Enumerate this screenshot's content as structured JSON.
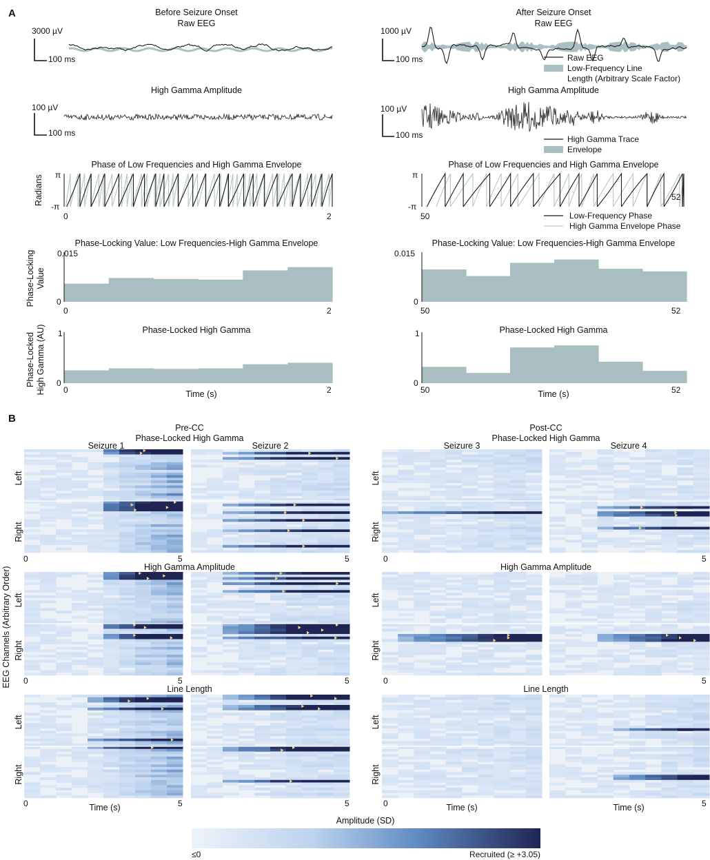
{
  "panel_labels": [
    "A",
    "B"
  ],
  "colors": {
    "trace": "#1b1b1b",
    "gray_blue": "#a9bfc2",
    "bar_fill": "#a8bec0",
    "light_trace": "#b5c6c8",
    "heat_low": "#e9eff7",
    "heat_mid": "#5a86c0",
    "heat_high": "#232b5a",
    "marker": "#f2d38a"
  },
  "panel_a": {
    "before": {
      "title": "Before Seizure Onset",
      "raw_title": "Raw EEG",
      "raw_scale_y": "3000 µV",
      "raw_scale_x": "100 ms",
      "hg_title": "High Gamma Amplitude",
      "hg_scale_y": "100 µV",
      "hg_scale_x": "100 ms",
      "phase_title": "Phase of Low Frequencies and High Gamma Envelope",
      "phase_ylabel": "Radians",
      "phase_ytop": "π",
      "phase_ybot": "-π",
      "phase_x0": "0",
      "phase_x1": "2",
      "plv_title": "Phase-Locking Value: Low Frequencies-High Gamma Envelope",
      "plv_ylabel_1": "Phase-Locking",
      "plv_ylabel_2": "Value",
      "plv_ytop": "0.015",
      "plv_ybot": "0",
      "plv_x0": "0",
      "plv_x1": "2",
      "plhg_title": "Phase-Locked High Gamma",
      "plhg_ylabel_1": "Phase-Locked",
      "plhg_ylabel_2": "High Gamma (AU)",
      "plhg_ytop": "1",
      "plhg_ybot": "0",
      "plhg_x0": "0",
      "plhg_x1": "2",
      "xlabel": "Time (s)"
    },
    "after": {
      "title": "After Seizure Onset",
      "raw_title": "Raw EEG",
      "raw_scale_y": "1000 µV",
      "raw_scale_x": "100 ms",
      "raw_legend": [
        "Raw EEG",
        "Low-Frequency Line",
        "Length (Arbitrary Scale Factor)"
      ],
      "hg_title": "High Gamma Amplitude",
      "hg_scale_y": "100 µV",
      "hg_scale_x": "100 ms",
      "hg_legend": [
        "High Gamma Trace",
        "Envelope"
      ],
      "phase_title": "Phase of Low Frequencies and High Gamma Envelope",
      "phase_ytop": "π",
      "phase_ybot": "-π",
      "phase_x0": "50",
      "phase_x1": "52",
      "phase_legend": [
        "Low-Frequency Phase",
        "High Gamma Envelope Phase"
      ],
      "plv_title": "Phase-Locking Value: Low Frequencies-High Gamma Envelope",
      "plv_ytop": "0.015",
      "plv_ybot": "0",
      "plv_x0": "50",
      "plv_x1": "52",
      "plhg_title": "Phase-Locked High Gamma",
      "plhg_ytop": "1",
      "plhg_ybot": "0",
      "plhg_x0": "50",
      "plhg_x1": "52",
      "xlabel": "Time (s)"
    }
  },
  "panel_b": {
    "pre_title_1": "Pre-CC",
    "pre_title_2": "Phase-Locked High Gamma",
    "post_title_1": "Post-CC",
    "post_title_2": "Phase-Locked High Gamma",
    "seizures": [
      "Seizure 1",
      "Seizure 2",
      "Seizure 3",
      "Seizure 4"
    ],
    "row_titles": [
      "High Gamma Amplitude",
      "Line Length"
    ],
    "ylabel": "EEG Channels (Arbitrary Order)",
    "left": "Left",
    "right": "Right",
    "x0": "0",
    "x1": "5",
    "xlabel": "Time (s)",
    "colorbar_title": "Amplitude (SD)",
    "colorbar_low": "≤0",
    "colorbar_high": "Recruited (≥ +3.05)"
  },
  "chart_data": [
    {
      "type": "bar",
      "title": "Phase-Locking Value: Low Frequencies-High Gamma Envelope (Before Seizure Onset)",
      "xlabel": "",
      "ylabel": "Phase-Locking Value",
      "xlim": [
        0,
        2
      ],
      "ylim": [
        0,
        0.015
      ],
      "values": [
        0.0055,
        0.0072,
        0.0069,
        0.0067,
        0.0095,
        0.0105
      ]
    },
    {
      "type": "bar",
      "title": "Phase-Locking Value: Low Frequencies-High Gamma Envelope (After Seizure Onset)",
      "xlabel": "",
      "ylabel": "Phase-Locking Value",
      "xlim": [
        50,
        52
      ],
      "ylim": [
        0,
        0.015
      ],
      "values": [
        0.0098,
        0.0078,
        0.0118,
        0.0128,
        0.01,
        0.0092
      ]
    },
    {
      "type": "bar",
      "title": "Phase-Locked High Gamma (Before Seizure Onset)",
      "xlabel": "Time (s)",
      "ylabel": "Phase-Locked High Gamma (AU)",
      "xlim": [
        0,
        2
      ],
      "ylim": [
        0,
        1
      ],
      "values": [
        0.25,
        0.29,
        0.28,
        0.29,
        0.37,
        0.4
      ]
    },
    {
      "type": "bar",
      "title": "Phase-Locked High Gamma (After Seizure Onset)",
      "xlabel": "Time (s)",
      "ylabel": "Phase-Locked High Gamma (AU)",
      "xlim": [
        50,
        52
      ],
      "ylim": [
        0,
        1
      ],
      "values": [
        0.32,
        0.2,
        0.7,
        0.74,
        0.42,
        0.24
      ]
    },
    {
      "type": "heatmap",
      "title": "Phase-Locked High Gamma / High Gamma Amplitude / Line Length per seizure (Pre-CC: Seizure 1-2, Post-CC: Seizure 3-4)",
      "xlabel": "Time (s)",
      "ylabel": "EEG Channels (Arbitrary Order)",
      "xlim": [
        0,
        5
      ],
      "colorbar": {
        "label": "Amplitude (SD)",
        "min_label": "≤0",
        "max_label": "Recruited (≥ +3.05)"
      }
    }
  ]
}
